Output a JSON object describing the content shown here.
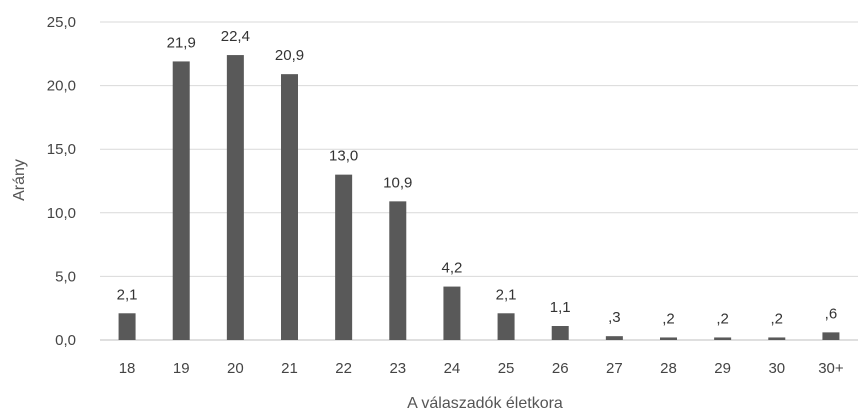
{
  "chart_data": {
    "type": "bar",
    "title": "",
    "xlabel": "A válaszadók életkora",
    "ylabel": "Arány",
    "categories": [
      "18",
      "19",
      "20",
      "21",
      "22",
      "23",
      "24",
      "25",
      "26",
      "27",
      "28",
      "29",
      "30",
      "30+"
    ],
    "values": [
      2.1,
      21.9,
      22.4,
      20.9,
      13.0,
      10.9,
      4.2,
      2.1,
      1.1,
      0.3,
      0.2,
      0.2,
      0.2,
      0.6
    ],
    "data_labels": [
      "2,1",
      "21,9",
      "22,4",
      "20,9",
      "13,0",
      "10,9",
      "4,2",
      "2,1",
      "1,1",
      ",3",
      ",2",
      ",2",
      ",2",
      ",6"
    ],
    "ylim": [
      0,
      25
    ],
    "yticks": [
      0,
      5,
      10,
      15,
      20,
      25
    ],
    "ytick_labels": [
      "0,0",
      "5,0",
      "10,0",
      "15,0",
      "20,0",
      "25,0"
    ],
    "grid": true,
    "legend": "none",
    "colors": {
      "bar": "#595959",
      "grid": "#d9d9d9",
      "axis": "#bfbfbf"
    }
  }
}
